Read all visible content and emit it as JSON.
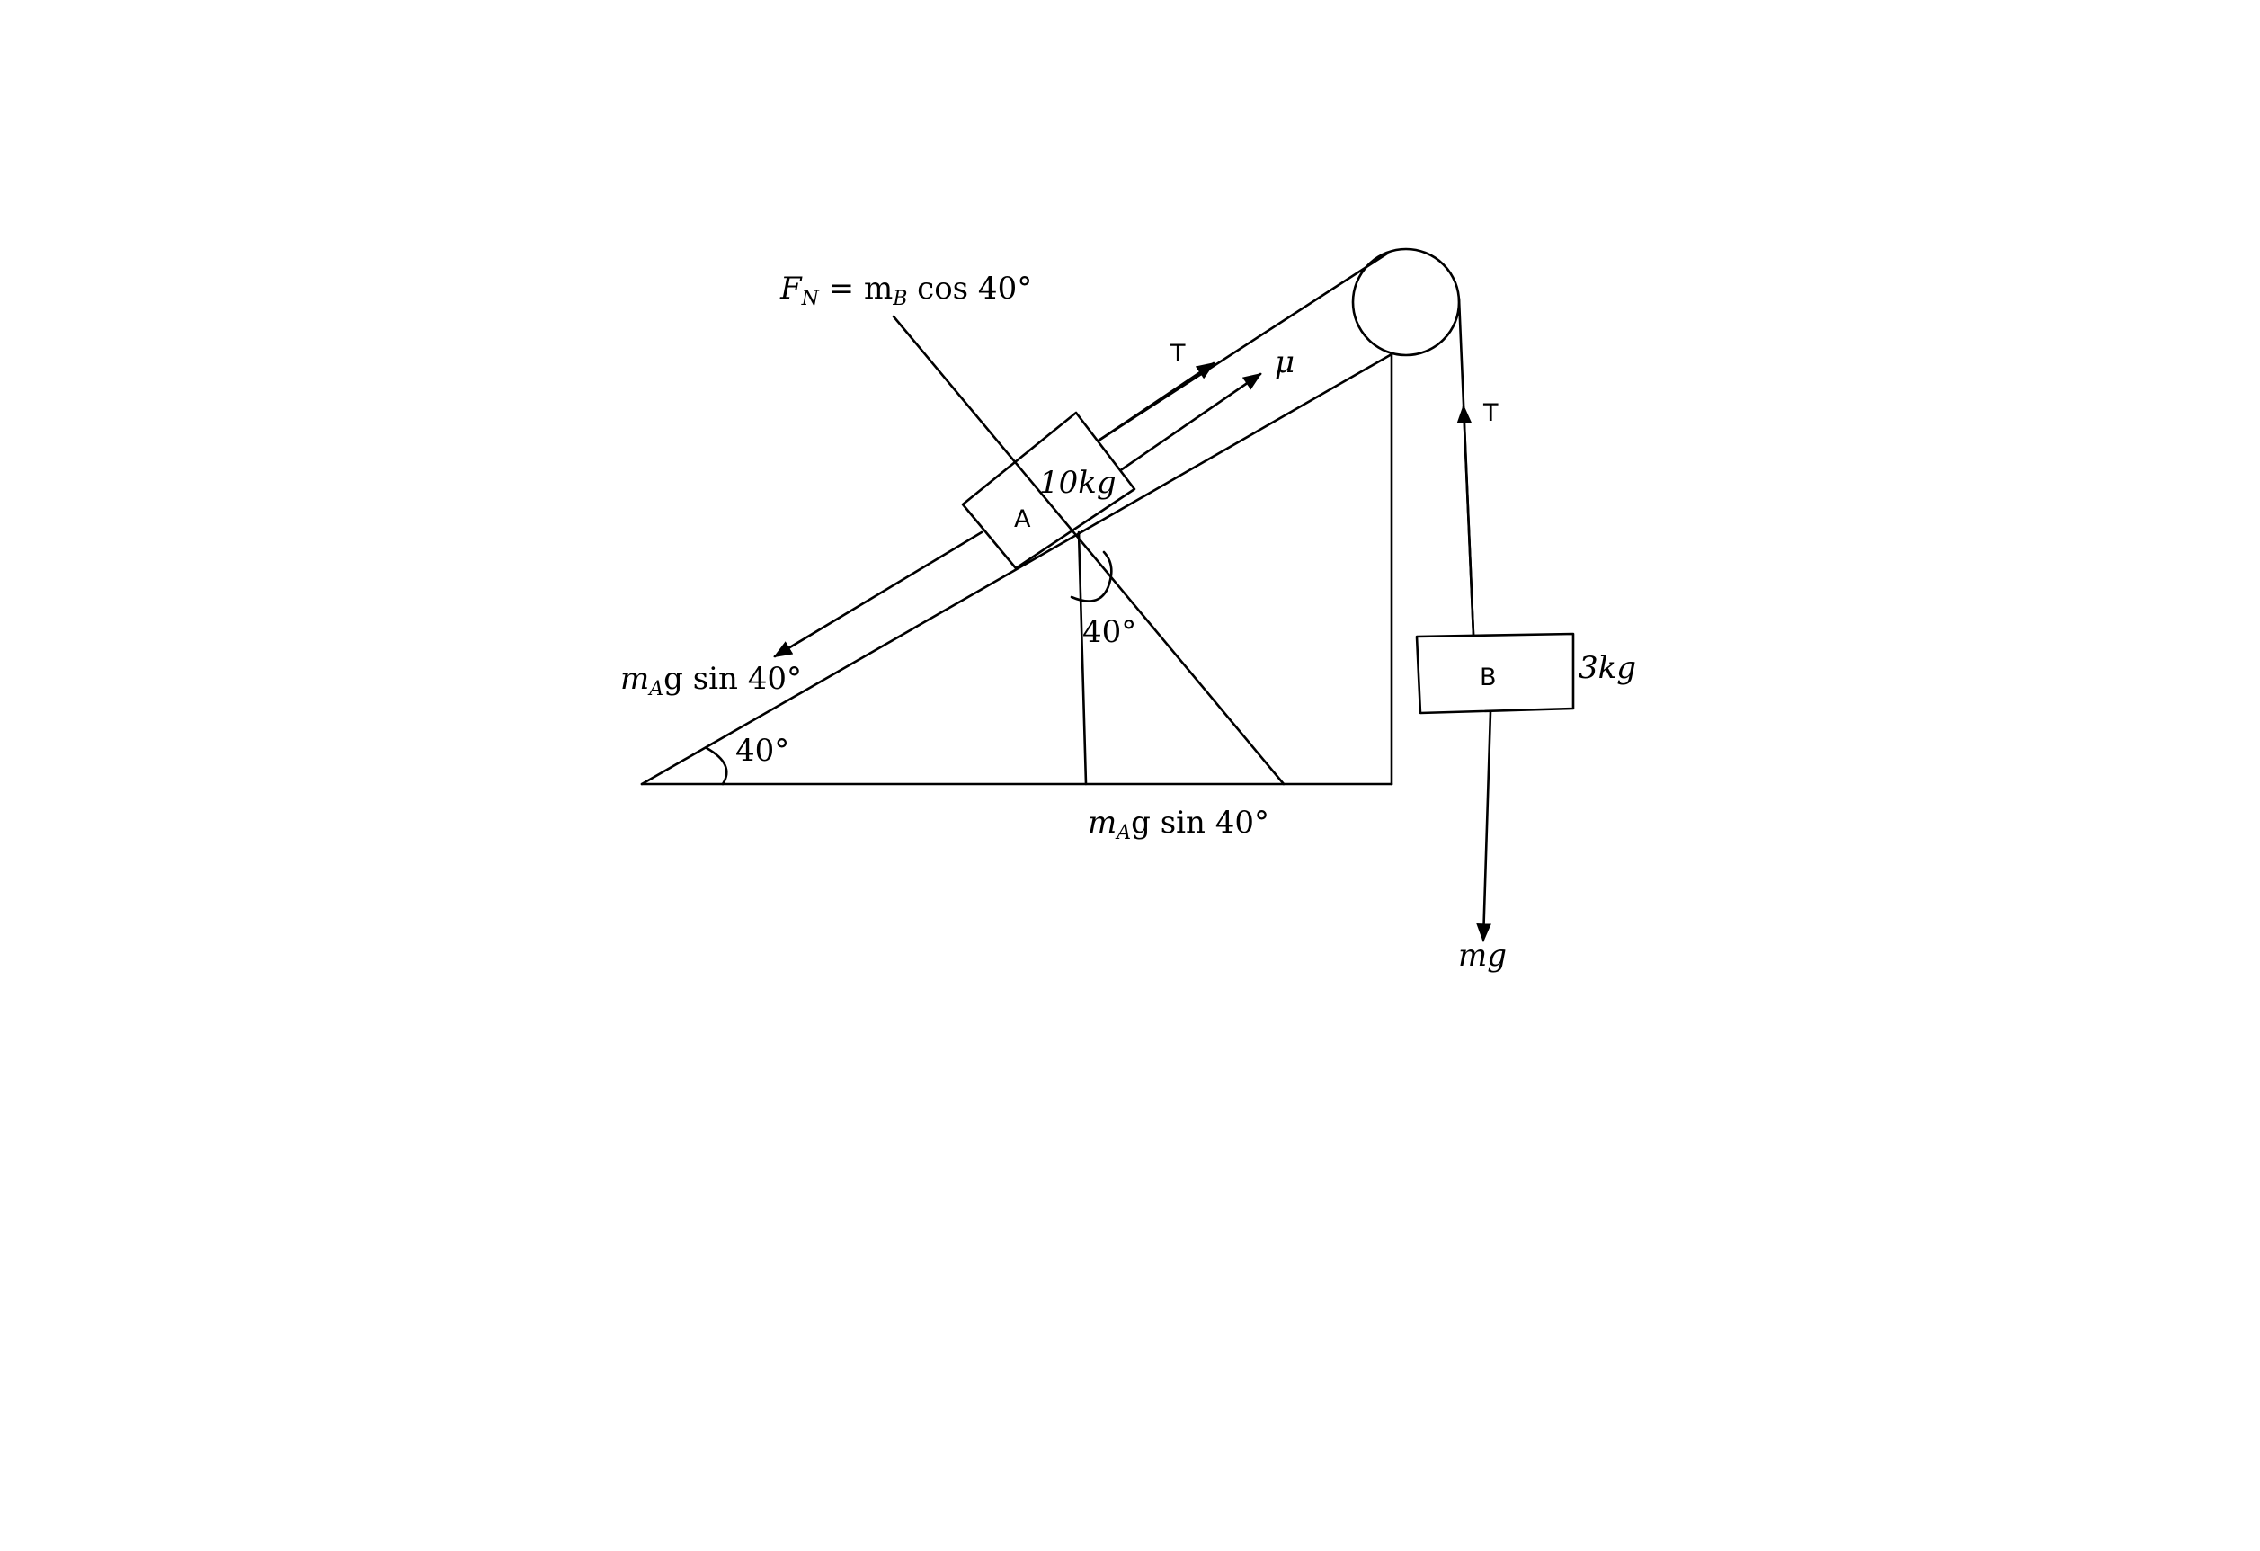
{
  "diagram": {
    "block_a": {
      "label": "A",
      "mass": "10kg"
    },
    "block_b": {
      "label": "B",
      "mass": "3kg"
    },
    "normal_force": {
      "lhs": "F",
      "lhs_sub": "N",
      "eq": " = m",
      "rhs_sub": "B",
      "rhs": " cos 40°"
    },
    "tension_a": "T",
    "friction": "μ",
    "weight_component_incline": {
      "m": "m",
      "sub": "A",
      "rest": "g sin 40°"
    },
    "weight_component_bottom": {
      "m": "m",
      "sub": "A",
      "rest": "g sin 40°"
    },
    "incline_angle": "40°",
    "inner_angle": "40°",
    "tension_b": "T",
    "weight_b": "mg"
  }
}
